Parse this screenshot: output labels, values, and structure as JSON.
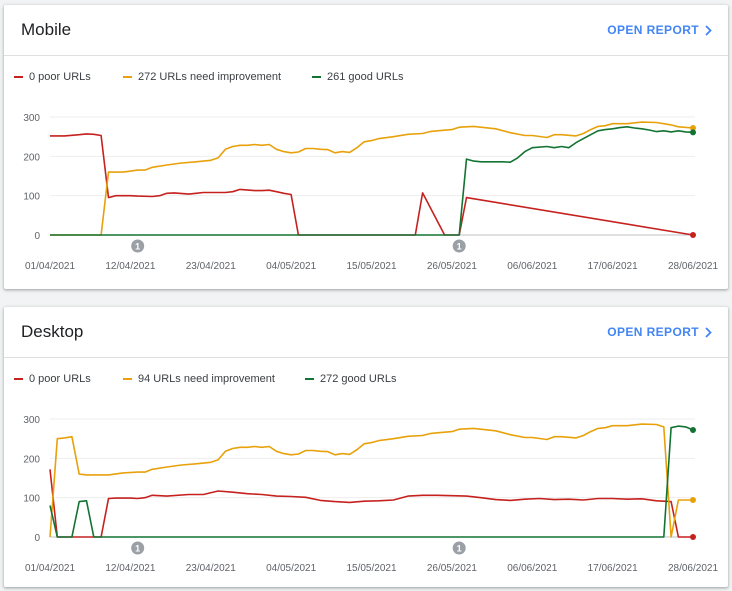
{
  "cards": [
    {
      "title": "Mobile",
      "open_report_label": "OPEN REPORT",
      "legend": [
        {
          "label": "0 poor URLs",
          "color": "#c5221f"
        },
        {
          "label": "272 URLs need improvement",
          "color": "#e8a10b"
        },
        {
          "label": "261 good URLs",
          "color": "#137333"
        }
      ]
    },
    {
      "title": "Desktop",
      "open_report_label": "OPEN REPORT",
      "legend": [
        {
          "label": "0 poor URLs",
          "color": "#c5221f"
        },
        {
          "label": "94 URLs need improvement",
          "color": "#e8a10b"
        },
        {
          "label": "272 good URLs",
          "color": "#137333"
        }
      ]
    }
  ],
  "chart_data": [
    {
      "type": "line",
      "chart": "mobile",
      "ylim": [
        0,
        300
      ],
      "yticks": [
        0,
        100,
        200,
        300
      ],
      "x_start": "01/04/2021",
      "x_end": "28/06/2021",
      "xticks": [
        "01/04/2021",
        "12/04/2021",
        "23/04/2021",
        "04/05/2021",
        "15/05/2021",
        "26/05/2021",
        "06/06/2021",
        "17/06/2021",
        "28/06/2021"
      ],
      "annotations": [
        {
          "date": "13/04/2021",
          "label": "1"
        },
        {
          "date": "27/05/2021",
          "label": "1"
        }
      ],
      "series": [
        {
          "name": "0 poor URLs",
          "color": "#c5221f",
          "x": [
            "01/04/2021",
            "03/04/2021",
            "05/04/2021",
            "06/04/2021",
            "07/04/2021",
            "08/04/2021",
            "09/04/2021",
            "10/04/2021",
            "11/04/2021",
            "12/04/2021",
            "13/04/2021",
            "15/04/2021",
            "16/04/2021",
            "17/04/2021",
            "18/04/2021",
            "20/04/2021",
            "21/04/2021",
            "22/04/2021",
            "23/04/2021",
            "24/04/2021",
            "25/04/2021",
            "26/04/2021",
            "27/04/2021",
            "29/04/2021",
            "30/04/2021",
            "01/05/2021",
            "02/05/2021",
            "03/05/2021",
            "04/05/2021",
            "05/05/2021",
            "15/05/2021",
            "19/05/2021",
            "20/05/2021",
            "21/05/2021",
            "22/05/2021",
            "25/05/2021",
            "26/05/2021",
            "27/05/2021",
            "28/05/2021",
            "28/06/2021"
          ],
          "y": [
            252,
            252,
            255,
            257,
            256,
            253,
            95,
            100,
            100,
            100,
            99,
            98,
            100,
            106,
            107,
            104,
            106,
            108,
            108,
            108,
            108,
            110,
            116,
            113,
            113,
            114,
            110,
            106,
            103,
            0,
            0,
            0,
            0,
            0,
            107,
            0,
            0,
            0,
            95,
            0
          ]
        },
        {
          "name": "272 URLs need improvement",
          "color": "#e8a10b",
          "x": [
            "01/04/2021",
            "08/04/2021",
            "09/04/2021",
            "11/04/2021",
            "13/04/2021",
            "14/04/2021",
            "15/04/2021",
            "17/04/2021",
            "19/04/2021",
            "21/04/2021",
            "23/04/2021",
            "24/04/2021",
            "25/04/2021",
            "26/04/2021",
            "27/04/2021",
            "28/04/2021",
            "29/04/2021",
            "30/04/2021",
            "01/05/2021",
            "02/05/2021",
            "03/05/2021",
            "04/05/2021",
            "05/05/2021",
            "06/05/2021",
            "07/05/2021",
            "08/05/2021",
            "09/05/2021",
            "10/05/2021",
            "11/05/2021",
            "12/05/2021",
            "13/05/2021",
            "14/05/2021",
            "15/05/2021",
            "16/05/2021",
            "18/05/2021",
            "20/05/2021",
            "22/05/2021",
            "23/05/2021",
            "24/05/2021",
            "26/05/2021",
            "27/05/2021",
            "29/05/2021",
            "01/06/2021",
            "03/06/2021",
            "05/06/2021",
            "06/06/2021",
            "08/06/2021",
            "09/06/2021",
            "10/06/2021",
            "12/06/2021",
            "13/06/2021",
            "14/06/2021",
            "15/06/2021",
            "16/06/2021",
            "17/06/2021",
            "19/06/2021",
            "21/06/2021",
            "23/06/2021",
            "25/06/2021",
            "26/06/2021",
            "28/06/2021"
          ],
          "y": [
            0,
            0,
            160,
            160,
            165,
            165,
            172,
            178,
            183,
            186,
            190,
            196,
            218,
            225,
            228,
            228,
            230,
            228,
            230,
            218,
            212,
            209,
            211,
            220,
            220,
            218,
            217,
            209,
            212,
            210,
            222,
            237,
            240,
            245,
            250,
            256,
            258,
            263,
            265,
            268,
            274,
            276,
            270,
            260,
            253,
            253,
            248,
            255,
            255,
            252,
            258,
            268,
            276,
            278,
            283,
            283,
            287,
            286,
            280,
            275,
            272
          ]
        },
        {
          "name": "261 good URLs",
          "color": "#137333",
          "x": [
            "01/04/2021",
            "27/05/2021",
            "28/05/2021",
            "29/05/2021",
            "30/05/2021",
            "31/05/2021",
            "01/06/2021",
            "02/06/2021",
            "03/06/2021",
            "04/06/2021",
            "05/06/2021",
            "06/06/2021",
            "08/06/2021",
            "09/06/2021",
            "10/06/2021",
            "11/06/2021",
            "12/06/2021",
            "13/06/2021",
            "14/06/2021",
            "15/06/2021",
            "16/06/2021",
            "17/06/2021",
            "18/06/2021",
            "19/06/2021",
            "20/06/2021",
            "21/06/2021",
            "22/06/2021",
            "23/06/2021",
            "24/06/2021",
            "25/06/2021",
            "26/06/2021",
            "27/06/2021",
            "28/06/2021"
          ],
          "y": [
            0,
            0,
            193,
            188,
            186,
            186,
            186,
            186,
            185,
            196,
            212,
            222,
            225,
            222,
            225,
            222,
            235,
            245,
            255,
            265,
            268,
            270,
            273,
            275,
            272,
            270,
            267,
            263,
            265,
            262,
            265,
            262,
            261
          ]
        }
      ]
    },
    {
      "type": "line",
      "chart": "desktop",
      "ylim": [
        0,
        300
      ],
      "yticks": [
        0,
        100,
        200,
        300
      ],
      "x_start": "01/04/2021",
      "x_end": "28/06/2021",
      "xticks": [
        "01/04/2021",
        "12/04/2021",
        "23/04/2021",
        "04/05/2021",
        "15/05/2021",
        "26/05/2021",
        "06/06/2021",
        "17/06/2021",
        "28/06/2021"
      ],
      "annotations": [
        {
          "date": "13/04/2021",
          "label": "1"
        },
        {
          "date": "27/05/2021",
          "label": "1"
        }
      ],
      "series": [
        {
          "name": "0 poor URLs",
          "color": "#c5221f",
          "x": [
            "01/04/2021",
            "02/04/2021",
            "03/04/2021",
            "04/04/2021",
            "05/04/2021",
            "07/04/2021",
            "08/04/2021",
            "09/04/2021",
            "10/04/2021",
            "12/04/2021",
            "13/04/2021",
            "14/04/2021",
            "15/04/2021",
            "17/04/2021",
            "20/04/2021",
            "21/04/2021",
            "22/04/2021",
            "24/04/2021",
            "26/04/2021",
            "28/04/2021",
            "30/04/2021",
            "02/05/2021",
            "04/05/2021",
            "06/05/2021",
            "08/05/2021",
            "10/05/2021",
            "12/05/2021",
            "14/05/2021",
            "16/05/2021",
            "18/05/2021",
            "20/05/2021",
            "22/05/2021",
            "24/05/2021",
            "26/05/2021",
            "28/05/2021",
            "30/05/2021",
            "01/06/2021",
            "03/06/2021",
            "05/06/2021",
            "07/06/2021",
            "09/06/2021",
            "11/06/2021",
            "13/06/2021",
            "15/06/2021",
            "17/06/2021",
            "19/06/2021",
            "21/06/2021",
            "23/06/2021",
            "25/06/2021",
            "26/06/2021",
            "28/06/2021"
          ],
          "y": [
            172,
            0,
            0,
            0,
            0,
            0,
            0,
            98,
            99,
            99,
            98,
            100,
            106,
            104,
            108,
            108,
            108,
            117,
            114,
            110,
            108,
            104,
            103,
            101,
            93,
            90,
            88,
            91,
            92,
            94,
            104,
            106,
            106,
            105,
            104,
            100,
            95,
            93,
            96,
            98,
            95,
            96,
            94,
            98,
            98,
            96,
            97,
            92,
            90,
            0,
            0
          ]
        },
        {
          "name": "94 URLs need improvement",
          "color": "#e8a10b",
          "x": [
            "01/04/2021",
            "02/04/2021",
            "03/04/2021",
            "04/04/2021",
            "05/04/2021",
            "06/04/2021",
            "07/04/2021",
            "09/04/2021",
            "11/04/2021",
            "13/04/2021",
            "14/04/2021",
            "15/04/2021",
            "17/04/2021",
            "19/04/2021",
            "21/04/2021",
            "23/04/2021",
            "24/04/2021",
            "25/04/2021",
            "26/04/2021",
            "27/04/2021",
            "28/04/2021",
            "29/04/2021",
            "30/04/2021",
            "01/05/2021",
            "02/05/2021",
            "03/05/2021",
            "04/05/2021",
            "05/05/2021",
            "06/05/2021",
            "07/05/2021",
            "08/05/2021",
            "09/05/2021",
            "10/05/2021",
            "11/05/2021",
            "12/05/2021",
            "13/05/2021",
            "14/05/2021",
            "15/05/2021",
            "16/05/2021",
            "18/05/2021",
            "20/05/2021",
            "22/05/2021",
            "23/05/2021",
            "24/05/2021",
            "26/05/2021",
            "27/05/2021",
            "29/05/2021",
            "01/06/2021",
            "03/06/2021",
            "05/06/2021",
            "06/06/2021",
            "08/06/2021",
            "09/06/2021",
            "10/06/2021",
            "12/06/2021",
            "13/06/2021",
            "14/06/2021",
            "15/06/2021",
            "16/06/2021",
            "17/06/2021",
            "19/06/2021",
            "21/06/2021",
            "23/06/2021",
            "24/06/2021",
            "25/06/2021",
            "26/06/2021",
            "28/06/2021"
          ],
          "y": [
            0,
            250,
            252,
            255,
            160,
            158,
            158,
            158,
            163,
            165,
            165,
            172,
            178,
            183,
            186,
            190,
            196,
            218,
            225,
            228,
            228,
            230,
            228,
            230,
            218,
            212,
            209,
            211,
            220,
            220,
            218,
            217,
            209,
            212,
            210,
            222,
            237,
            240,
            245,
            250,
            256,
            258,
            263,
            265,
            268,
            274,
            276,
            270,
            260,
            253,
            253,
            248,
            255,
            255,
            252,
            258,
            268,
            276,
            278,
            283,
            283,
            287,
            286,
            280,
            0,
            94,
            94
          ]
        },
        {
          "name": "272 good URLs",
          "color": "#137333",
          "x": [
            "01/04/2021",
            "02/04/2021",
            "03/04/2021",
            "04/04/2021",
            "05/04/2021",
            "06/04/2021",
            "07/04/2021",
            "08/04/2021",
            "24/06/2021",
            "25/06/2021",
            "26/06/2021",
            "27/06/2021",
            "28/06/2021"
          ],
          "y": [
            80,
            0,
            0,
            0,
            90,
            92,
            0,
            0,
            0,
            278,
            282,
            280,
            272
          ]
        }
      ]
    }
  ]
}
